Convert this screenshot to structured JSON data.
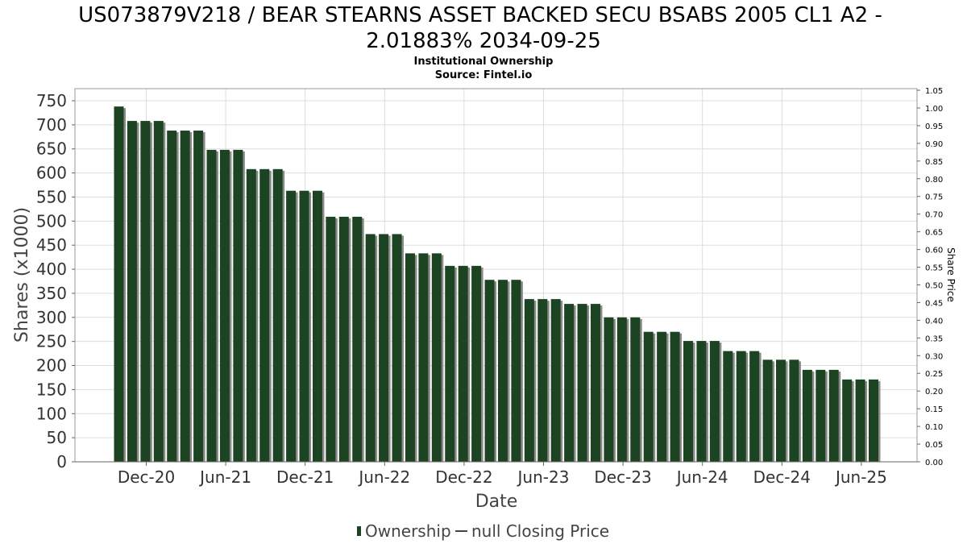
{
  "chart_data": {
    "type": "bar",
    "title_line1": "US073879V218 / BEAR STEARNS ASSET BACKED SECU BSABS 2005 CL1 A2 -",
    "title_line2": "2.01883% 2034-09-25",
    "subtitle_line1": "Institutional Ownership",
    "subtitle_line2": "Source: Fintel.io",
    "xlabel": "Date",
    "ylabel": "Shares (x1000)",
    "y2label": "Share Price",
    "ylim": [
      0,
      750
    ],
    "y_ticks": [
      "0",
      "50",
      "100",
      "150",
      "200",
      "250",
      "300",
      "350",
      "400",
      "450",
      "500",
      "550",
      "600",
      "650",
      "700",
      "750"
    ],
    "y2lim": [
      0,
      1.05
    ],
    "y2_ticks": [
      "0.00",
      "0.05",
      "0.10",
      "0.15",
      "0.20",
      "0.25",
      "0.30",
      "0.35",
      "0.40",
      "0.45",
      "0.50",
      "0.55",
      "0.60",
      "0.65",
      "0.70",
      "0.75",
      "0.80",
      "0.85",
      "0.90",
      "0.95",
      "1.00",
      "1.05"
    ],
    "x_ticks": [
      "Dec-20",
      "Jun-21",
      "Dec-21",
      "Jun-22",
      "Dec-22",
      "Jun-23",
      "Dec-23",
      "Jun-24",
      "Dec-24",
      "Jun-25"
    ],
    "bar_color": "#1c4423",
    "shadow_color": "#8a8a8a",
    "grid": true,
    "legend_position": "bottom-center",
    "series": [
      {
        "name": "Ownership",
        "values": [
          738,
          708,
          708,
          708,
          688,
          688,
          688,
          648,
          648,
          648,
          608,
          608,
          608,
          563,
          563,
          563,
          509,
          509,
          509,
          473,
          473,
          473,
          433,
          433,
          433,
          407,
          407,
          407,
          378,
          378,
          378,
          338,
          338,
          338,
          328,
          328,
          328,
          300,
          300,
          300,
          270,
          270,
          270,
          251,
          251,
          251,
          230,
          230,
          230,
          212,
          212,
          212,
          191,
          191,
          191,
          171,
          171,
          171
        ]
      }
    ],
    "legend": {
      "ownership_label": "Ownership",
      "price_label": "null Closing Price"
    }
  }
}
